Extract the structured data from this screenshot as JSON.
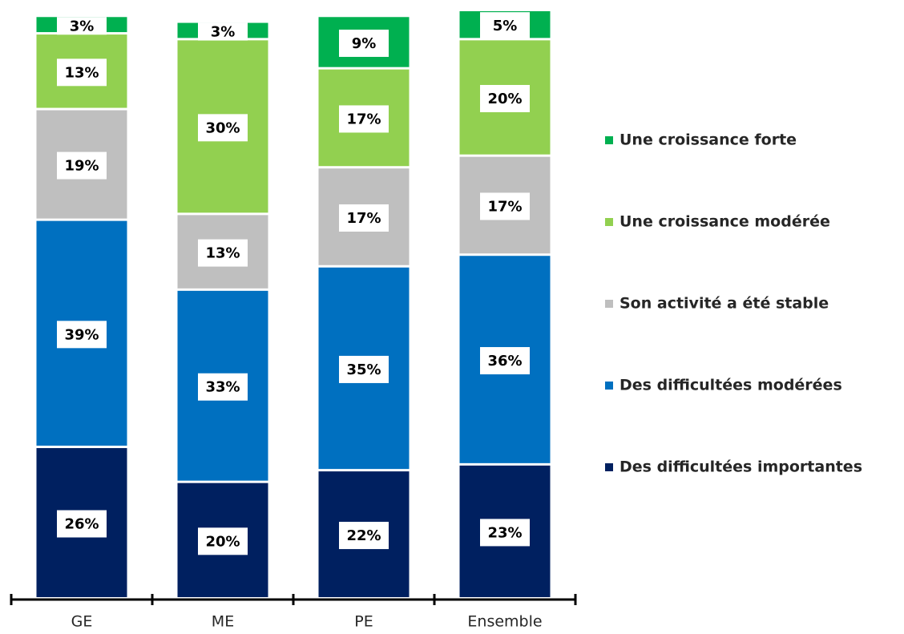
{
  "chart_data": {
    "type": "stacked_bar",
    "categories": [
      "GE",
      "ME",
      "PE",
      "Ensemble"
    ],
    "ylim": [
      0,
      101
    ],
    "series": [
      {
        "name": "Des difficultées importantes",
        "color": "#002060",
        "values": [
          26,
          20,
          22,
          23
        ],
        "value_labels": [
          "26%",
          "20%",
          "22%",
          "23%"
        ]
      },
      {
        "name": "Des difficultées modérées",
        "color": "#0070c0",
        "values": [
          39,
          33,
          35,
          36
        ],
        "value_labels": [
          "39%",
          "33%",
          "35%",
          "36%"
        ]
      },
      {
        "name": "Son activité a été stable",
        "color": "#bfbfbf",
        "values": [
          19,
          13,
          17,
          17
        ],
        "value_labels": [
          "19%",
          "13%",
          "17%",
          "17%"
        ]
      },
      {
        "name": "Une croissance modérée",
        "color": "#92d050",
        "values": [
          13,
          30,
          17,
          20
        ],
        "value_labels": [
          "13%",
          "30%",
          "17%",
          "20%"
        ]
      },
      {
        "name": "Une croissance forte",
        "color": "#00b050",
        "values": [
          3,
          3,
          9,
          5
        ],
        "value_labels": [
          "3%",
          "3%",
          "9%",
          "5%"
        ]
      }
    ],
    "legend": "right"
  }
}
